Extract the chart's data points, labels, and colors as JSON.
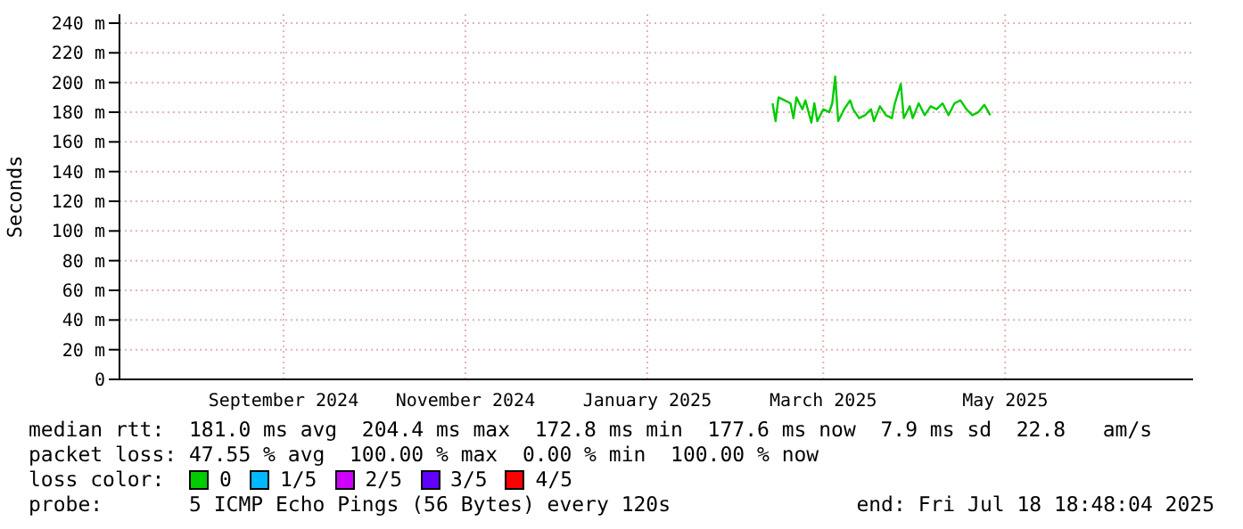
{
  "chart_data": {
    "type": "line",
    "ylabel": "Seconds",
    "x": [
      "2025-02-27",
      "2025-02-28",
      "2025-03-01",
      "2025-03-03",
      "2025-03-05",
      "2025-03-06",
      "2025-03-07",
      "2025-03-09",
      "2025-03-10",
      "2025-03-12",
      "2025-03-13",
      "2025-03-14",
      "2025-03-16",
      "2025-03-18",
      "2025-03-19",
      "2025-03-20",
      "2025-03-21",
      "2025-03-23",
      "2025-03-25",
      "2025-03-26",
      "2025-03-28",
      "2025-03-30",
      "2025-04-01",
      "2025-04-02",
      "2025-04-04",
      "2025-04-06",
      "2025-04-08",
      "2025-04-09",
      "2025-04-11",
      "2025-04-12",
      "2025-04-14",
      "2025-04-15",
      "2025-04-17",
      "2025-04-19",
      "2025-04-21",
      "2025-04-23",
      "2025-04-25",
      "2025-04-27",
      "2025-04-29",
      "2025-05-01",
      "2025-05-03",
      "2025-05-05",
      "2025-05-07",
      "2025-05-09",
      "2025-05-11"
    ],
    "series": [
      {
        "name": "0",
        "color": "#00cc00",
        "values": [
          186,
          174,
          190,
          188,
          186,
          176,
          190,
          182,
          188,
          173,
          186,
          174,
          182,
          180,
          186,
          204,
          174,
          182,
          188,
          182,
          176,
          178,
          182,
          174,
          184,
          178,
          176,
          186,
          199,
          176,
          184,
          176,
          186,
          178,
          184,
          182,
          186,
          178,
          186,
          188,
          182,
          178,
          180,
          185,
          178
        ]
      },
      {
        "name": "1/5",
        "color": "#00b8ff",
        "values": [
          null,
          null,
          null,
          null,
          null,
          null,
          null,
          null,
          null,
          null,
          null,
          null,
          null,
          null,
          null,
          null,
          null,
          null,
          null,
          null,
          null,
          null,
          null,
          null,
          null,
          null,
          null,
          null,
          null,
          null,
          null,
          null,
          null,
          null,
          null,
          null,
          null,
          null,
          null,
          null,
          null,
          null,
          null,
          null,
          null
        ]
      },
      {
        "name": "2/5",
        "color": "#d000ff",
        "values": [
          null,
          null,
          null,
          null,
          null,
          null,
          null,
          null,
          null,
          null,
          null,
          null,
          null,
          null,
          null,
          null,
          null,
          null,
          null,
          null,
          null,
          null,
          null,
          null,
          null,
          null,
          null,
          null,
          null,
          null,
          null,
          null,
          null,
          null,
          null,
          null,
          null,
          null,
          null,
          null,
          null,
          null,
          null,
          null,
          null
        ]
      },
      {
        "name": "3/5",
        "color": "#6000ff",
        "values": [
          null,
          null,
          null,
          null,
          null,
          null,
          null,
          null,
          null,
          null,
          null,
          null,
          null,
          null,
          null,
          null,
          null,
          null,
          null,
          null,
          null,
          null,
          null,
          null,
          null,
          null,
          null,
          null,
          null,
          null,
          null,
          null,
          null,
          null,
          null,
          null,
          null,
          null,
          null,
          null,
          null,
          null,
          null,
          null,
          null
        ]
      },
      {
        "name": "4/5",
        "color": "#ff0000",
        "values": [
          null,
          null,
          null,
          null,
          null,
          null,
          null,
          null,
          null,
          null,
          null,
          null,
          null,
          null,
          null,
          null,
          null,
          null,
          null,
          null,
          null,
          null,
          null,
          null,
          null,
          null,
          null,
          null,
          null,
          null,
          null,
          null,
          null,
          null,
          null,
          null,
          null,
          null,
          null,
          null,
          null,
          null,
          null,
          null,
          null
        ]
      }
    ],
    "legend": "bottom",
    "legend_title": "loss color:",
    "xlim": [
      "2024-07-23",
      "2025-07-18"
    ],
    "xticks": [
      {
        "value": "2024-09-16",
        "label": "September 2024"
      },
      {
        "value": "2024-11-16",
        "label": "November 2024"
      },
      {
        "value": "2025-01-16",
        "label": "January 2025"
      },
      {
        "value": "2025-03-16",
        "label": "March 2025"
      },
      {
        "value": "2025-05-16",
        "label": "May 2025"
      }
    ],
    "ylim": [
      0,
      246
    ],
    "yticks": [
      0,
      {
        "value": 20,
        "label": "20 m"
      },
      {
        "value": 40,
        "label": "40 m"
      },
      {
        "value": 60,
        "label": "60 m"
      },
      {
        "value": 80,
        "label": "80 m"
      },
      {
        "value": 100,
        "label": "100 m"
      },
      {
        "value": 120,
        "label": "120 m"
      },
      {
        "value": 140,
        "label": "140 m"
      },
      {
        "value": 160,
        "label": "160 m"
      },
      {
        "value": 180,
        "label": "180 m"
      },
      {
        "value": 200,
        "label": "200 m"
      },
      {
        "value": 220,
        "label": "220 m"
      },
      {
        "value": 240,
        "label": "240 m"
      }
    ],
    "grid": true,
    "marker": "none",
    "line_style": "solid",
    "annotations": [
      "median rtt:  181.0 ms avg  204.4 ms max  172.8 ms min  177.6 ms now  7.9 ms sd  22.8   am/s",
      "packet loss: 47.55 % avg  100.00 % max  0.00 % min  100.00 % now",
      "probe:       5 ICMP Echo Pings (56 Bytes) every 120s",
      "end: Fri Jul 18 18:48:04 2025"
    ]
  }
}
